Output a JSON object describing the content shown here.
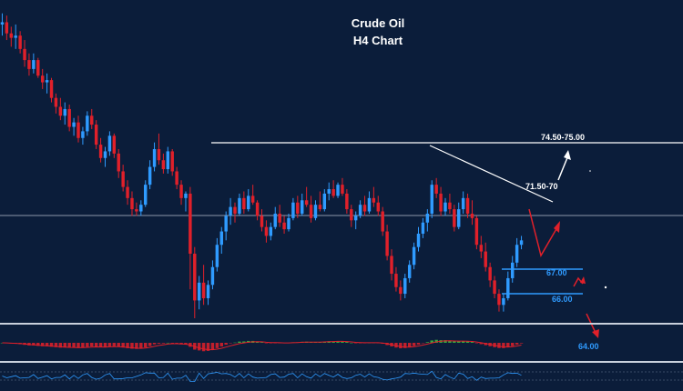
{
  "chart_data": {
    "type": "candlestick",
    "title": "Crude Oil",
    "subtitle": "H4 Chart",
    "colors": {
      "background": "#0b1d3a",
      "bull": "#2f9bff",
      "bear": "#e0202a",
      "level_line": "#ffffff",
      "target_line": "#2f9bff",
      "macd_pos": "#3fbf3f",
      "macd_neg": "#e0202a"
    },
    "levels": [
      {
        "label": "74.50-75.00",
        "type": "resistance"
      },
      {
        "label": "71.50-70",
        "type": "trendline"
      },
      {
        "label": "67.00",
        "type": "target"
      },
      {
        "label": "66.00",
        "type": "target"
      },
      {
        "label": "64.00",
        "type": "target"
      }
    ],
    "candles": [
      [
        78.9,
        79.4,
        78.4,
        79.0
      ],
      [
        79.0,
        79.3,
        78.2,
        78.5
      ],
      [
        78.5,
        78.8,
        77.9,
        78.3
      ],
      [
        78.3,
        78.9,
        77.8,
        78.4
      ],
      [
        78.4,
        78.6,
        77.6,
        77.8
      ],
      [
        77.8,
        78.2,
        77.0,
        77.3
      ],
      [
        77.3,
        77.6,
        76.6,
        76.9
      ],
      [
        76.9,
        77.6,
        76.7,
        77.3
      ],
      [
        77.3,
        77.4,
        76.5,
        76.6
      ],
      [
        76.6,
        76.9,
        76.0,
        76.3
      ],
      [
        76.3,
        76.7,
        75.8,
        76.4
      ],
      [
        76.4,
        76.5,
        75.4,
        75.6
      ],
      [
        75.6,
        75.8,
        74.9,
        75.2
      ],
      [
        75.2,
        75.6,
        74.6,
        74.8
      ],
      [
        74.8,
        75.4,
        74.4,
        75.1
      ],
      [
        75.1,
        75.3,
        74.1,
        74.3
      ],
      [
        74.3,
        74.7,
        73.9,
        74.5
      ],
      [
        74.5,
        74.8,
        73.6,
        73.8
      ],
      [
        73.8,
        74.3,
        73.5,
        74.1
      ],
      [
        74.1,
        75.0,
        73.9,
        74.8
      ],
      [
        74.8,
        75.1,
        74.2,
        74.4
      ],
      [
        74.4,
        74.6,
        73.3,
        73.5
      ],
      [
        73.5,
        73.8,
        72.7,
        72.9
      ],
      [
        72.9,
        73.4,
        72.5,
        73.2
      ],
      [
        73.2,
        74.1,
        73.0,
        73.9
      ],
      [
        73.9,
        74.0,
        72.9,
        73.1
      ],
      [
        73.1,
        73.3,
        72.0,
        72.3
      ],
      [
        72.3,
        72.6,
        71.4,
        71.6
      ],
      [
        71.6,
        71.9,
        70.8,
        71.1
      ],
      [
        71.1,
        71.4,
        70.3,
        70.6
      ],
      [
        70.6,
        70.9,
        70.3,
        70.5
      ],
      [
        70.5,
        71.0,
        70.3,
        70.8
      ],
      [
        70.8,
        71.9,
        70.7,
        71.7
      ],
      [
        71.7,
        72.8,
        71.5,
        72.5
      ],
      [
        72.5,
        73.6,
        72.3,
        73.3
      ],
      [
        73.3,
        74.0,
        72.6,
        72.8
      ],
      [
        72.8,
        73.1,
        72.2,
        72.4
      ],
      [
        72.4,
        73.4,
        72.2,
        73.2
      ],
      [
        73.2,
        73.3,
        72.1,
        72.3
      ],
      [
        72.3,
        72.5,
        71.5,
        71.7
      ],
      [
        71.7,
        71.9,
        70.8,
        71.1
      ],
      [
        71.1,
        71.4,
        70.5,
        71.3
      ],
      [
        71.3,
        71.6,
        67.0,
        68.6
      ],
      [
        68.6,
        68.9,
        65.7,
        66.5
      ],
      [
        66.5,
        67.6,
        66.1,
        67.3
      ],
      [
        67.3,
        68.1,
        66.3,
        66.6
      ],
      [
        66.6,
        67.4,
        66.3,
        67.2
      ],
      [
        67.2,
        68.3,
        67.0,
        68.0
      ],
      [
        68.0,
        69.3,
        67.8,
        69.0
      ],
      [
        69.0,
        69.8,
        68.6,
        69.6
      ],
      [
        69.6,
        70.5,
        69.2,
        70.3
      ],
      [
        70.3,
        71.1,
        69.9,
        70.7
      ],
      [
        70.7,
        70.9,
        70.0,
        70.4
      ],
      [
        70.4,
        71.3,
        70.3,
        71.1
      ],
      [
        71.1,
        71.4,
        70.4,
        70.6
      ],
      [
        70.6,
        71.5,
        70.5,
        71.2
      ],
      [
        71.2,
        71.7,
        70.8,
        70.9
      ],
      [
        70.9,
        71.0,
        70.1,
        70.3
      ],
      [
        70.3,
        70.6,
        69.6,
        69.8
      ],
      [
        69.8,
        70.1,
        69.1,
        69.4
      ],
      [
        69.4,
        70.0,
        69.2,
        69.8
      ],
      [
        69.8,
        70.7,
        69.7,
        70.4
      ],
      [
        70.4,
        70.8,
        69.8,
        70.0
      ],
      [
        70.0,
        70.3,
        69.5,
        69.7
      ],
      [
        69.7,
        70.4,
        69.6,
        70.2
      ],
      [
        70.2,
        71.1,
        70.1,
        70.9
      ],
      [
        70.9,
        71.2,
        70.2,
        70.4
      ],
      [
        70.4,
        71.3,
        70.3,
        71.0
      ],
      [
        71.0,
        71.6,
        70.7,
        70.8
      ],
      [
        70.8,
        71.2,
        70.0,
        70.2
      ],
      [
        70.2,
        71.0,
        70.1,
        70.8
      ],
      [
        70.8,
        71.4,
        70.5,
        70.6
      ],
      [
        70.6,
        71.5,
        70.5,
        71.3
      ],
      [
        71.3,
        71.8,
        71.0,
        71.5
      ],
      [
        71.5,
        71.9,
        71.1,
        71.2
      ],
      [
        71.2,
        71.8,
        71.1,
        71.7
      ],
      [
        71.7,
        72.0,
        71.2,
        71.3
      ],
      [
        71.3,
        71.5,
        70.4,
        70.6
      ],
      [
        70.6,
        70.8,
        69.8,
        70.1
      ],
      [
        70.1,
        70.5,
        69.7,
        70.3
      ],
      [
        70.3,
        71.0,
        70.2,
        70.8
      ],
      [
        70.8,
        71.2,
        70.3,
        70.5
      ],
      [
        70.5,
        71.4,
        70.4,
        71.1
      ],
      [
        71.1,
        71.6,
        70.7,
        70.9
      ],
      [
        70.9,
        71.2,
        70.3,
        70.5
      ],
      [
        70.5,
        70.7,
        69.4,
        69.6
      ],
      [
        69.6,
        69.9,
        68.3,
        68.5
      ],
      [
        68.5,
        68.8,
        67.4,
        67.7
      ],
      [
        67.7,
        68.0,
        66.9,
        67.1
      ],
      [
        67.1,
        67.4,
        66.5,
        66.8
      ],
      [
        66.8,
        67.7,
        66.6,
        67.5
      ],
      [
        67.5,
        68.3,
        67.3,
        68.1
      ],
      [
        68.1,
        69.1,
        67.9,
        68.9
      ],
      [
        68.9,
        69.8,
        68.7,
        69.5
      ],
      [
        69.5,
        70.2,
        69.3,
        70.0
      ],
      [
        70.0,
        70.6,
        69.6,
        70.4
      ],
      [
        70.4,
        71.9,
        70.2,
        71.7
      ],
      [
        71.7,
        72.0,
        71.1,
        71.3
      ],
      [
        71.3,
        71.6,
        70.3,
        70.5
      ],
      [
        70.5,
        71.1,
        70.3,
        70.9
      ],
      [
        70.9,
        71.3,
        70.4,
        70.6
      ],
      [
        70.6,
        70.8,
        69.6,
        69.8
      ],
      [
        69.8,
        70.9,
        69.7,
        70.6
      ],
      [
        70.6,
        71.4,
        70.4,
        71.1
      ],
      [
        71.1,
        71.3,
        70.2,
        70.4
      ],
      [
        70.4,
        71.0,
        69.9,
        70.2
      ],
      [
        70.2,
        70.3,
        68.8,
        69.0
      ],
      [
        69.0,
        69.4,
        68.4,
        68.7
      ],
      [
        68.7,
        69.1,
        67.8,
        68.0
      ],
      [
        68.0,
        68.2,
        67.1,
        67.4
      ],
      [
        67.4,
        67.6,
        66.6,
        66.8
      ],
      [
        66.8,
        67.0,
        66.0,
        66.3
      ],
      [
        66.3,
        66.8,
        66.0,
        66.6
      ],
      [
        66.6,
        67.8,
        66.5,
        67.5
      ],
      [
        67.5,
        68.5,
        67.3,
        68.2
      ],
      [
        68.2,
        69.3,
        68.0,
        69.0
      ],
      [
        69.0,
        69.4,
        68.8,
        69.2
      ]
    ]
  }
}
